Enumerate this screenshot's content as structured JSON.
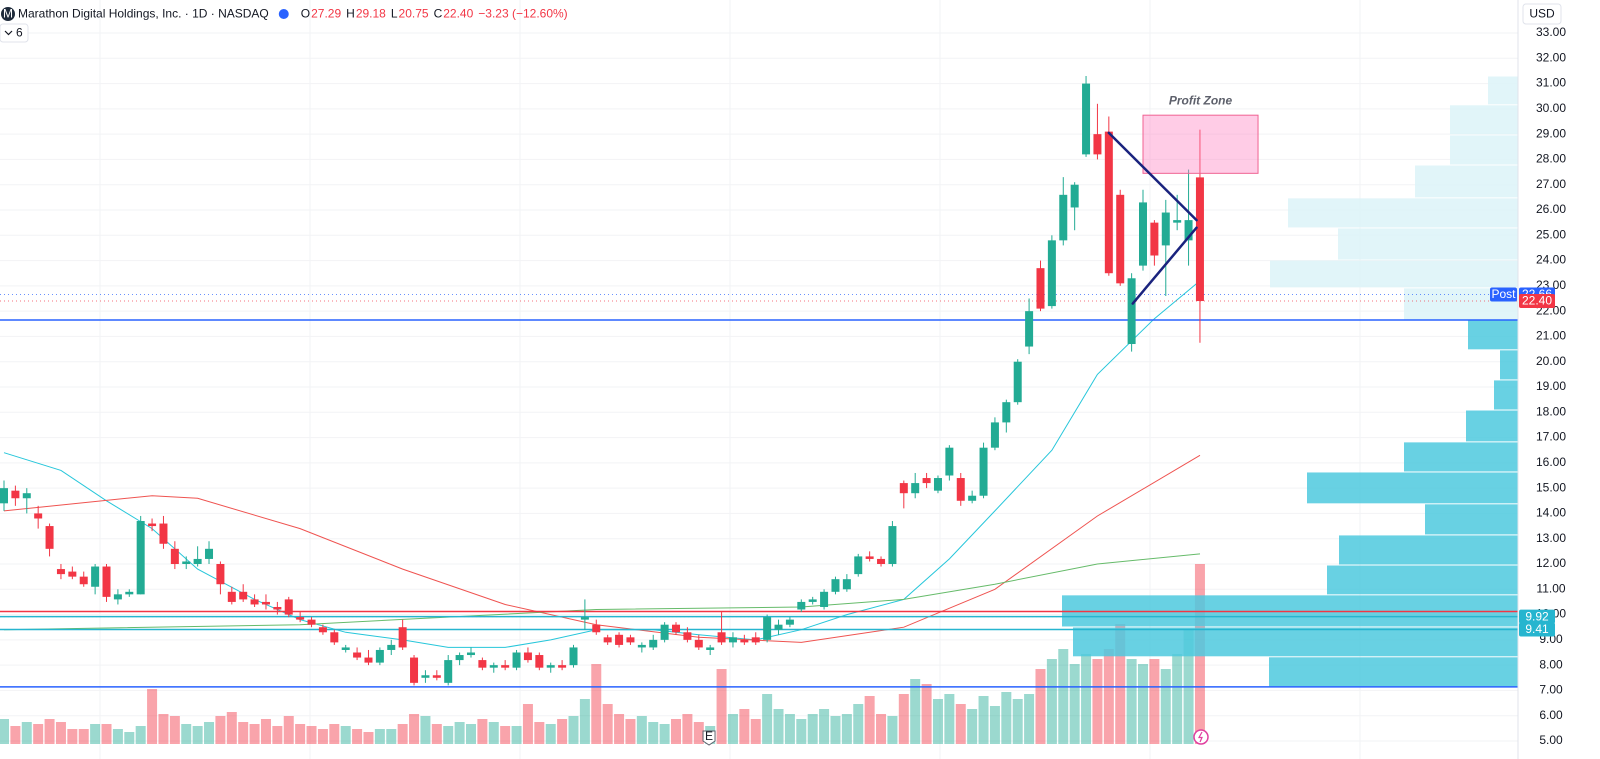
{
  "chart_data": {
    "type": "candlestick",
    "title": "Marathon Digital Holdings, Inc. · 1D · NASDAQ",
    "logo": "M",
    "ohlc": [
      {
        "key": "O",
        "value": "27.29"
      },
      {
        "key": "H",
        "value": "29.18"
      },
      {
        "key": "L",
        "value": "20.75"
      },
      {
        "key": "C",
        "value": "22.40"
      }
    ],
    "change": "−3.23 (−12.60%)",
    "indicator_count": "6",
    "currency": "USD",
    "up_color": "#22ab94",
    "down_color": "#f23645",
    "ylim": [
      5,
      33
    ],
    "yticks": [
      {
        "value": 5,
        "label": "5.00"
      },
      {
        "value": 6,
        "label": "6.00"
      },
      {
        "value": 7,
        "label": "7.00"
      },
      {
        "value": 8,
        "label": "8.00"
      },
      {
        "value": 9,
        "label": "9.00"
      },
      {
        "value": 10,
        "label": "10.00"
      },
      {
        "value": 11,
        "label": "11.00"
      },
      {
        "value": 12,
        "label": "12.00"
      },
      {
        "value": 13,
        "label": "13.00"
      },
      {
        "value": 14,
        "label": "14.00"
      },
      {
        "value": 15,
        "label": "15.00"
      },
      {
        "value": 16,
        "label": "16.00"
      },
      {
        "value": 17,
        "label": "17.00"
      },
      {
        "value": 18,
        "label": "18.00"
      },
      {
        "value": 19,
        "label": "19.00"
      },
      {
        "value": 20,
        "label": "20.00"
      },
      {
        "value": 21,
        "label": "21.00"
      },
      {
        "value": 22,
        "label": "22.00"
      },
      {
        "value": 23,
        "label": "23.00"
      },
      {
        "value": 24,
        "label": "24.00"
      },
      {
        "value": 25,
        "label": "25.00"
      },
      {
        "value": 26,
        "label": "26.00"
      },
      {
        "value": 27,
        "label": "27.00"
      },
      {
        "value": 28,
        "label": "28.00"
      },
      {
        "value": 29,
        "label": "29.00"
      },
      {
        "value": 30,
        "label": "30.00"
      },
      {
        "value": 31,
        "label": "31.00"
      },
      {
        "value": 32,
        "label": "32.00"
      },
      {
        "value": 33,
        "label": "33.00"
      }
    ],
    "grid": true,
    "candles": {
      "open": [
        14.4,
        14.9,
        14.6,
        14.0,
        13.5,
        11.8,
        11.7,
        11.5,
        11.1,
        11.9,
        10.6,
        10.8,
        10.8,
        13.6,
        13.6,
        12.6,
        12.0,
        12.0,
        12.2,
        12.0,
        10.9,
        10.9,
        10.6,
        10.5,
        10.3,
        10.6,
        9.9,
        9.8,
        9.5,
        9.3,
        8.6,
        8.5,
        8.3,
        8.1,
        8.6,
        9.5,
        8.3,
        7.5,
        7.6,
        7.3,
        8.2,
        8.4,
        8.2,
        7.9,
        8.0,
        7.9,
        8.5,
        8.4,
        7.9,
        8.0,
        8.0,
        9.8,
        9.6,
        9.1,
        9.2,
        9.1,
        8.7,
        8.7,
        9.0,
        9.6,
        9.3,
        9.0,
        8.6,
        9.3,
        8.9,
        9.0,
        9.1,
        9.0,
        9.4,
        9.6,
        10.2,
        10.5,
        10.3,
        10.9,
        11.0,
        11.6,
        12.3,
        12.2,
        12.0,
        15.2,
        14.8,
        15.4,
        14.9,
        15.5,
        15.4,
        14.5,
        14.7,
        16.6,
        17.6,
        18.4,
        20.6,
        23.7,
        22.2,
        24.8,
        26.1,
        28.2,
        29.0,
        29.1,
        26.6,
        20.7,
        23.8,
        25.5,
        24.6,
        25.5,
        24.8,
        27.29
      ],
      "high": [
        15.3,
        15.1,
        15.0,
        14.3,
        13.6,
        12.0,
        11.9,
        11.7,
        12.0,
        12.0,
        11.0,
        11.0,
        13.9,
        13.8,
        13.9,
        12.9,
        12.3,
        12.7,
        12.9,
        12.1,
        11.1,
        11.2,
        10.8,
        10.8,
        10.5,
        10.7,
        10.1,
        9.9,
        9.6,
        9.4,
        8.8,
        8.7,
        8.6,
        8.7,
        9.0,
        9.8,
        8.4,
        7.8,
        7.8,
        8.4,
        8.5,
        8.7,
        8.3,
        8.1,
        8.2,
        8.6,
        8.7,
        8.5,
        8.1,
        8.2,
        8.8,
        10.6,
        9.8,
        9.2,
        9.3,
        9.2,
        8.9,
        9.2,
        9.7,
        9.7,
        9.5,
        9.2,
        8.8,
        10.1,
        9.3,
        9.2,
        9.3,
        10.0,
        9.8,
        9.9,
        10.6,
        10.7,
        11.0,
        11.5,
        11.6,
        12.4,
        12.5,
        12.3,
        13.7,
        15.3,
        15.6,
        15.6,
        15.5,
        16.7,
        15.6,
        14.9,
        16.8,
        17.8,
        18.5,
        20.1,
        22.5,
        24.0,
        25.0,
        27.3,
        27.1,
        31.3,
        30.2,
        29.7,
        26.8,
        23.5,
        26.8,
        25.6,
        26.4,
        26.6,
        27.6,
        29.18
      ],
      "low": [
        14.1,
        14.3,
        14.0,
        13.4,
        12.3,
        11.4,
        11.4,
        11.1,
        10.8,
        10.5,
        10.4,
        10.7,
        10.8,
        13.3,
        12.6,
        11.8,
        11.8,
        11.9,
        12.0,
        10.8,
        10.4,
        10.5,
        10.3,
        10.2,
        10.0,
        9.9,
        9.7,
        9.5,
        9.2,
        8.8,
        8.5,
        8.2,
        8.0,
        8.0,
        8.4,
        8.6,
        7.2,
        7.3,
        7.4,
        7.2,
        8.0,
        8.3,
        7.8,
        7.7,
        7.8,
        7.8,
        8.1,
        7.8,
        7.7,
        7.8,
        7.9,
        9.4,
        9.2,
        8.8,
        8.7,
        8.8,
        8.5,
        8.6,
        8.9,
        9.2,
        8.9,
        8.6,
        8.4,
        8.8,
        8.7,
        8.8,
        8.8,
        8.9,
        9.2,
        9.5,
        10.1,
        10.4,
        10.2,
        10.8,
        10.9,
        11.5,
        12.1,
        11.9,
        11.9,
        14.2,
        14.6,
        15.0,
        14.8,
        15.3,
        14.3,
        14.4,
        14.6,
        16.5,
        17.2,
        18.3,
        20.3,
        22.0,
        22.1,
        24.6,
        25.2,
        28.1,
        28.0,
        23.4,
        23.0,
        20.4,
        23.6,
        23.8,
        22.6,
        25.2,
        23.8,
        20.75
      ],
      "close": [
        15.0,
        14.6,
        14.8,
        13.8,
        12.6,
        11.6,
        11.5,
        11.2,
        11.9,
        10.7,
        10.8,
        10.9,
        13.7,
        13.5,
        12.8,
        12.0,
        12.1,
        12.2,
        12.6,
        11.2,
        10.5,
        10.6,
        10.4,
        10.4,
        10.2,
        10.0,
        9.8,
        9.6,
        9.3,
        8.9,
        8.7,
        8.3,
        8.1,
        8.6,
        8.8,
        8.7,
        7.3,
        7.6,
        7.5,
        8.2,
        8.4,
        8.5,
        7.9,
        8.0,
        7.9,
        8.5,
        8.2,
        7.9,
        8.0,
        7.9,
        8.7,
        9.9,
        9.3,
        8.9,
        8.8,
        8.9,
        8.8,
        9.0,
        9.6,
        9.3,
        9.0,
        8.7,
        8.7,
        8.9,
        9.1,
        8.9,
        8.9,
        9.9,
        9.6,
        9.8,
        10.5,
        10.6,
        10.9,
        11.4,
        11.4,
        12.3,
        12.2,
        12.0,
        13.5,
        14.8,
        15.2,
        15.2,
        15.4,
        16.6,
        14.5,
        14.7,
        16.6,
        17.6,
        18.4,
        20.0,
        22.0,
        22.1,
        24.8,
        26.6,
        27.0,
        31.0,
        28.2,
        23.5,
        23.1,
        23.3,
        26.3,
        24.2,
        25.9,
        25.6,
        25.6,
        22.4
      ]
    },
    "volume": [
      25,
      18,
      22,
      20,
      25,
      22,
      15,
      15,
      20,
      20,
      15,
      12,
      18,
      55,
      30,
      28,
      20,
      18,
      22,
      28,
      32,
      22,
      20,
      25,
      18,
      28,
      20,
      18,
      15,
      20,
      18,
      15,
      12,
      15,
      15,
      20,
      30,
      28,
      20,
      18,
      22,
      20,
      25,
      22,
      18,
      18,
      40,
      22,
      20,
      25,
      28,
      45,
      80,
      40,
      30,
      25,
      28,
      22,
      20,
      25,
      30,
      22,
      18,
      75,
      30,
      35,
      25,
      50,
      35,
      30,
      25,
      30,
      35,
      28,
      30,
      40,
      48,
      30,
      28,
      50,
      65,
      60,
      45,
      50,
      40,
      35,
      48,
      38,
      52,
      45,
      50,
      75,
      85,
      95,
      80,
      90,
      85,
      95,
      120,
      85,
      80,
      85,
      75,
      90,
      115,
      180
    ],
    "moving_averages": [
      {
        "color": "#26c6da",
        "x": [
          0,
          5,
          9,
          13,
          17,
          22,
          26,
          30,
          35,
          39,
          44,
          48,
          52,
          57,
          61,
          66,
          70,
          74,
          79,
          83,
          87,
          92,
          96,
          101,
          105
        ],
        "values": [
          16.4,
          15.7,
          14.5,
          13.4,
          11.8,
          10.6,
          9.8,
          9.3,
          9.0,
          8.7,
          8.7,
          9.0,
          9.4,
          9.4,
          9.2,
          9.0,
          9.4,
          10.0,
          10.6,
          12.2,
          14.1,
          16.5,
          19.5,
          21.7,
          23.2
        ]
      },
      {
        "color": "#ef5350",
        "x": [
          0,
          13,
          17,
          26,
          35,
          44,
          52,
          61,
          70,
          79,
          87,
          96,
          105
        ],
        "values": [
          14.1,
          14.7,
          14.6,
          13.4,
          11.8,
          10.4,
          9.6,
          9.1,
          8.9,
          9.5,
          11.0,
          13.9,
          16.3
        ]
      },
      {
        "color": "#66bb6a",
        "x": [
          0,
          26,
          52,
          70,
          79,
          87,
          96,
          105
        ],
        "values": [
          9.4,
          9.6,
          10.2,
          10.3,
          10.6,
          11.2,
          12.0,
          12.4
        ]
      }
    ],
    "volume_profile": {
      "bins": [
        7.14,
        8.33,
        9.51,
        10.78,
        11.96,
        13.15,
        14.38,
        15.64,
        16.83,
        18.09,
        19.28,
        20.47,
        21.65,
        22.92,
        24.02,
        25.29,
        26.48,
        27.78,
        28.97,
        30.16,
        31.3
      ],
      "values": [
        249,
        445,
        456,
        191,
        179,
        93,
        211,
        114,
        52,
        24,
        18,
        50,
        114,
        248,
        180,
        230,
        103,
        68,
        68,
        30
      ],
      "colors": [
        "#4dc9de",
        "#4dc9de",
        "#4dc9de",
        "#4dc9de",
        "#4dc9de",
        "#4dc9de",
        "#4dc9de",
        "#4dc9de",
        "#4dc9de",
        "#4dc9de",
        "#4dc9de",
        "#4dc9de",
        "#dcf3f8",
        "#dcf3f8",
        "#dcf3f8",
        "#dcf3f8",
        "#dcf3f8",
        "#dcf3f8",
        "#dcf3f8",
        "#dcf3f8"
      ]
    },
    "levels": [
      {
        "value": 21.65,
        "color": "#2962ff"
      },
      {
        "value": 10.12,
        "color": "#f23645"
      },
      {
        "value": 9.92,
        "color": "#26b5cf"
      },
      {
        "value": 9.41,
        "color": "#26b5cf"
      },
      {
        "value": 7.14,
        "color": "#2962ff"
      }
    ],
    "price_labels": [
      {
        "value": 22.66,
        "label": "22.66",
        "tag": "Post",
        "color": "#2962ff"
      },
      {
        "value": 22.4,
        "label": "22.40",
        "color": "#f23645"
      },
      {
        "value": 9.92,
        "label": "9.92",
        "color": "#26b5cf"
      },
      {
        "value": 9.41,
        "label": "9.41",
        "color": "#26b5cf"
      }
    ],
    "profit_zone": {
      "label": "Profit Zone",
      "x": [
        100.0,
        110.1
      ],
      "y": [
        27.45,
        29.75
      ]
    },
    "trendlines": [
      {
        "x": [
          97.0,
          104.7
        ],
        "y": [
          29.05,
          25.6
        ]
      },
      {
        "x": [
          99.1,
          104.7
        ],
        "y": [
          22.3,
          25.3
        ]
      }
    ],
    "earnings_marker": {
      "label": "E",
      "x": 61.9
    }
  }
}
